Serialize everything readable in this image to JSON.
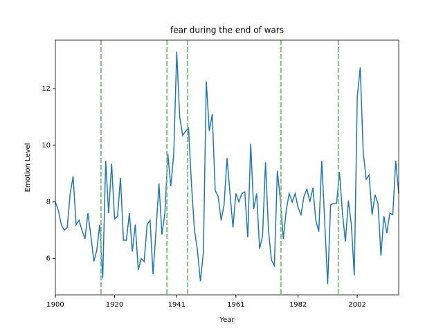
{
  "chart_data": {
    "type": "line",
    "title": "fear during the end of wars",
    "x_label": "Year",
    "y_label": "Emotion Level",
    "x": [
      1900,
      1901,
      1902,
      1903,
      1904,
      1905,
      1906,
      1907,
      1908,
      1909,
      1910,
      1911,
      1912,
      1913,
      1914,
      1915,
      1916,
      1917,
      1918,
      1919,
      1920,
      1921,
      1922,
      1923,
      1924,
      1925,
      1926,
      1927,
      1928,
      1929,
      1930,
      1931,
      1932,
      1933,
      1934,
      1935,
      1936,
      1937,
      1938,
      1939,
      1940,
      1941,
      1942,
      1943,
      1944,
      1945,
      1946,
      1947,
      1948,
      1949,
      1950,
      1951,
      1952,
      1953,
      1954,
      1955,
      1956,
      1957,
      1958,
      1959,
      1960,
      1961,
      1962,
      1963,
      1964,
      1965,
      1966,
      1967,
      1968,
      1969,
      1970,
      1971,
      1972,
      1973,
      1974,
      1975,
      1976,
      1977,
      1978,
      1979,
      1980,
      1981,
      1982,
      1983,
      1984,
      1985,
      1986,
      1987,
      1988,
      1989,
      1990,
      1991,
      1992,
      1993,
      1994,
      1995,
      1996,
      1997,
      1998,
      1999,
      2000,
      2001,
      2002,
      2003,
      2004,
      2005,
      2006,
      2007,
      2008,
      2009,
      2010,
      2011,
      2012,
      2013,
      2014,
      2015,
      2016
    ],
    "series": [
      {
        "color": "#1f77b4",
        "values": [
          8.0,
          7.7,
          7.2,
          7.0,
          7.1,
          8.3,
          8.9,
          7.2,
          7.35,
          7.0,
          6.7,
          7.6,
          6.8,
          5.9,
          6.3,
          7.2,
          5.3,
          9.45,
          7.6,
          9.35,
          7.4,
          7.5,
          8.85,
          6.65,
          6.65,
          7.6,
          6.25,
          7.2,
          5.6,
          6.0,
          5.9,
          7.2,
          7.35,
          5.45,
          7.0,
          8.65,
          6.85,
          7.6,
          9.7,
          8.55,
          9.7,
          13.3,
          11.0,
          10.35,
          10.5,
          10.6,
          8.6,
          7.0,
          6.3,
          5.2,
          6.2,
          12.25,
          10.5,
          11.1,
          8.4,
          8.2,
          7.35,
          7.9,
          9.55,
          8.3,
          7.1,
          8.3,
          8.0,
          8.3,
          8.35,
          6.75,
          10.05,
          7.75,
          8.3,
          6.35,
          6.8,
          9.4,
          7.0,
          5.95,
          5.75,
          9.1,
          8.1,
          6.7,
          7.7,
          8.3,
          8.0,
          8.3,
          7.8,
          7.55,
          8.2,
          8.45,
          8.0,
          8.5,
          7.35,
          6.95,
          9.45,
          7.3,
          5.1,
          7.9,
          7.95,
          7.95,
          9.05,
          7.6,
          6.6,
          8.05,
          7.2,
          5.4,
          11.7,
          12.75,
          9.8,
          8.8,
          8.95,
          7.55,
          8.25,
          7.95,
          6.1,
          7.5,
          6.9,
          7.6,
          7.55,
          9.45,
          8.3
        ]
      }
    ],
    "vlines": [
      1915.4,
      1937.7,
      1944.7,
      1976.2,
      1995.6
    ],
    "vline_color": "#7cc47c",
    "xlim": [
      1900,
      2016
    ],
    "xticks": [
      1900,
      1920,
      1941,
      1961,
      1982,
      2002
    ],
    "ylim": [
      4.72,
      13.71
    ],
    "yticks": [
      6,
      8,
      10,
      12
    ]
  }
}
